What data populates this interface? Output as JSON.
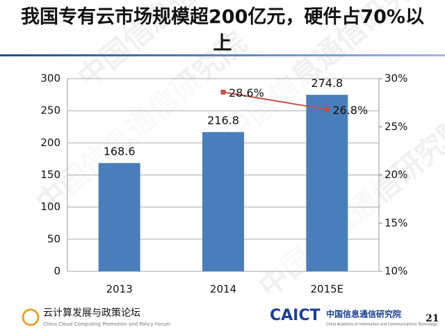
{
  "chart_data": {
    "type": "bar",
    "title": "我国专有云市场规模超200亿元，硬件占70%以上",
    "categories": [
      "2013",
      "2014",
      "2015E"
    ],
    "series": [
      {
        "color": "#4a7ebb",
        "values": [
          168.6,
          216.8,
          274.8
        ]
      },
      {
        "type": "line",
        "axis": "y2",
        "color": "#c0504d",
        "values": [
          null,
          28.6,
          26.8
        ],
        "value_labels": [
          null,
          "28.6%",
          "26.8%"
        ]
      }
    ],
    "ylim": [
      0,
      300
    ],
    "yticks": [
      0,
      50,
      100,
      150,
      200,
      250,
      300
    ],
    "y2lim": [
      10,
      30
    ],
    "y2ticks": [
      {
        "value": 10,
        "label": "10%"
      },
      {
        "value": 15,
        "label": "15%"
      },
      {
        "value": 20,
        "label": "20%"
      },
      {
        "value": 25,
        "label": "25%"
      },
      {
        "value": 30,
        "label": "30%"
      }
    ],
    "grid": true
  },
  "footer": {
    "forum_cn": "云计算发展与政策论坛",
    "forum_en": "China Cloud Computing Promotion and Policy Forum",
    "org_logo": "CAICT",
    "org_cn": "中国信息通信研究院",
    "org_en": "China Academy of Information and Communications Technology",
    "page": "21"
  },
  "watermark": "中国信息通信研究院"
}
